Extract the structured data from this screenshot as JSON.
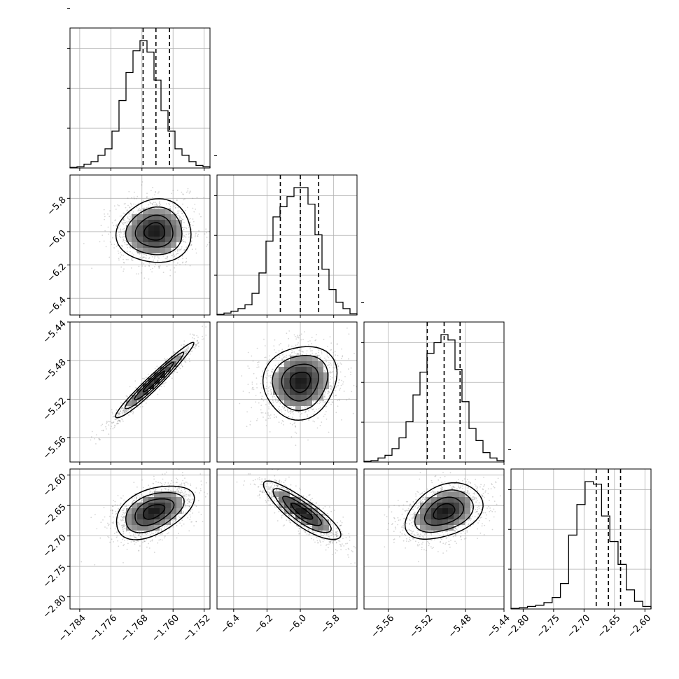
{
  "chart_data": {
    "type": "corner",
    "grid": true,
    "params": [
      {
        "ticks": [
          -1.784,
          -1.776,
          -1.768,
          -1.76,
          -1.752
        ],
        "tick_labels": [
          "−1.784",
          "−1.776",
          "−1.768",
          "−1.760",
          "−1.752"
        ],
        "range": [
          -1.7865,
          -1.7505
        ],
        "quantiles": [
          -1.7677,
          -1.7644,
          -1.7609
        ]
      },
      {
        "ticks": [
          -6.4,
          -6.2,
          -6.0,
          -5.8
        ],
        "tick_labels": [
          "−6.4",
          "−6.2",
          "−6.0",
          "−5.8"
        ],
        "range": [
          -6.5,
          -5.66
        ],
        "quantiles": [
          -6.12,
          -6.0,
          -5.89
        ]
      },
      {
        "ticks": [
          -5.56,
          -5.52,
          -5.48,
          -5.44
        ],
        "tick_labels": [
          "−5.56",
          "−5.52",
          "−5.48",
          "−5.44"
        ],
        "range": [
          -5.585,
          -5.44
        ],
        "quantiles": [
          -5.5195,
          -5.502,
          -5.4855
        ]
      },
      {
        "ticks": [
          -2.8,
          -2.75,
          -2.7,
          -2.65,
          -2.6
        ],
        "tick_labels": [
          "−2.80",
          "−2.75",
          "−2.70",
          "−2.65",
          "−2.60"
        ],
        "range": [
          -2.82,
          -2.59
        ],
        "quantiles": [
          -2.68,
          -2.66,
          -2.64
        ]
      }
    ],
    "histograms": [
      [
        0.005,
        0.01,
        0.03,
        0.05,
        0.1,
        0.15,
        0.29,
        0.53,
        0.75,
        0.92,
        1.0,
        0.91,
        0.69,
        0.45,
        0.29,
        0.15,
        0.1,
        0.05,
        0.02,
        0.01
      ],
      [
        0.005,
        0.015,
        0.03,
        0.05,
        0.08,
        0.17,
        0.33,
        0.58,
        0.77,
        0.85,
        0.93,
        1.0,
        1.0,
        0.87,
        0.63,
        0.36,
        0.2,
        0.1,
        0.05,
        0.01
      ],
      [
        0.005,
        0.01,
        0.03,
        0.05,
        0.1,
        0.18,
        0.3,
        0.5,
        0.67,
        0.81,
        0.89,
        0.95,
        0.91,
        0.69,
        0.45,
        0.25,
        0.16,
        0.07,
        0.03,
        0.01
      ],
      [
        0.005,
        0.01,
        0.02,
        0.03,
        0.05,
        0.09,
        0.2,
        0.58,
        0.82,
        1.0,
        0.98,
        0.73,
        0.53,
        0.35,
        0.15,
        0.06,
        0.02
      ]
    ],
    "pairs": [
      {
        "row": 1,
        "col": 0,
        "mean": [
          -1.7647,
          -6.0
        ],
        "sd": [
          0.0048,
          0.095
        ],
        "corr": 0.03
      },
      {
        "row": 2,
        "col": 0,
        "mean": [
          -1.765,
          -5.502
        ],
        "sd": [
          0.005,
          0.0195
        ],
        "corr": 0.97
      },
      {
        "row": 2,
        "col": 1,
        "mean": [
          -6.0,
          -5.502
        ],
        "sd": [
          0.11,
          0.019
        ],
        "corr": 0.1
      },
      {
        "row": 3,
        "col": 0,
        "mean": [
          -1.765,
          -2.66
        ],
        "sd": [
          0.005,
          0.022
        ],
        "corr": 0.45
      },
      {
        "row": 3,
        "col": 1,
        "mean": [
          -5.99,
          -2.66
        ],
        "sd": [
          0.115,
          0.024
        ],
        "corr": -0.85
      },
      {
        "row": 3,
        "col": 2,
        "mean": [
          -5.502,
          -2.66
        ],
        "sd": [
          0.02,
          0.023
        ],
        "corr": 0.35
      }
    ]
  }
}
